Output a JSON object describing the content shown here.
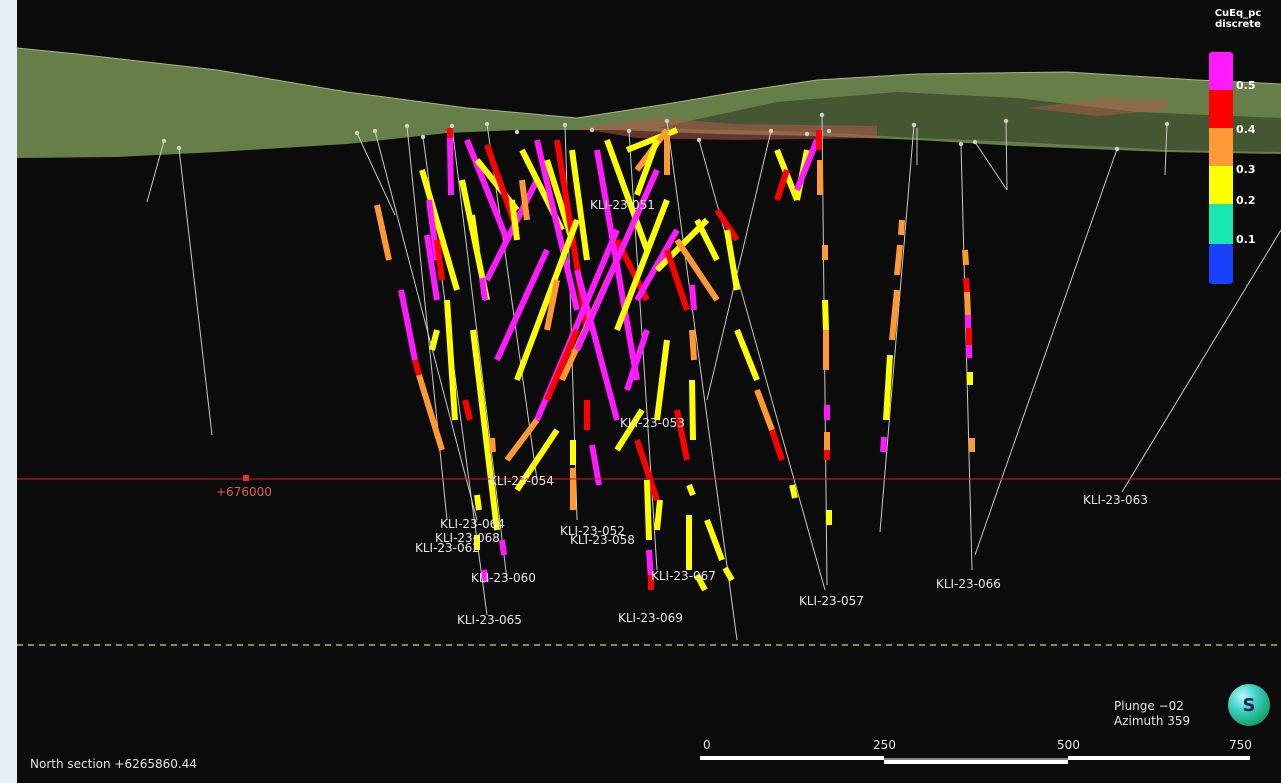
{
  "legend": {
    "title_line1": "CuEq_pc",
    "title_line2": "discrete",
    "values": [
      "0.5",
      "0.4",
      "0.3",
      "0.2",
      "0.1"
    ],
    "colors": [
      "#ff1aff",
      "#ff0000",
      "#ff9933",
      "#ffff00",
      "#19e6b0",
      "#1a40ff"
    ]
  },
  "section": {
    "easting_label": "+676000",
    "north_label": "North section +6265860.44"
  },
  "view": {
    "plunge": "Plunge −02",
    "azimuth": "Azimuth 359",
    "compass_letter": "S"
  },
  "scale": {
    "ticks": [
      "0",
      "250",
      "500",
      "750"
    ]
  },
  "holes": [
    {
      "id": "KLI-23-051"
    },
    {
      "id": "KLI-23-053"
    },
    {
      "id": "KLI-23-054"
    },
    {
      "id": "KLI-23-064"
    },
    {
      "id": "KLI-23-068"
    },
    {
      "id": "KLI-23-062"
    },
    {
      "id": "KLI-23-052"
    },
    {
      "id": "KLI-23-058"
    },
    {
      "id": "KLI-23-060"
    },
    {
      "id": "KLI-23-065"
    },
    {
      "id": "KLI-23-067"
    },
    {
      "id": "KLI-23-069"
    },
    {
      "id": "KLI-23-057"
    },
    {
      "id": "KLI-23-066"
    },
    {
      "id": "KLI-23-063"
    }
  ],
  "colors": {
    "surface": "#6f8a4e",
    "section_line": "#d01a1a",
    "dashed_line": "#d9d94a"
  }
}
